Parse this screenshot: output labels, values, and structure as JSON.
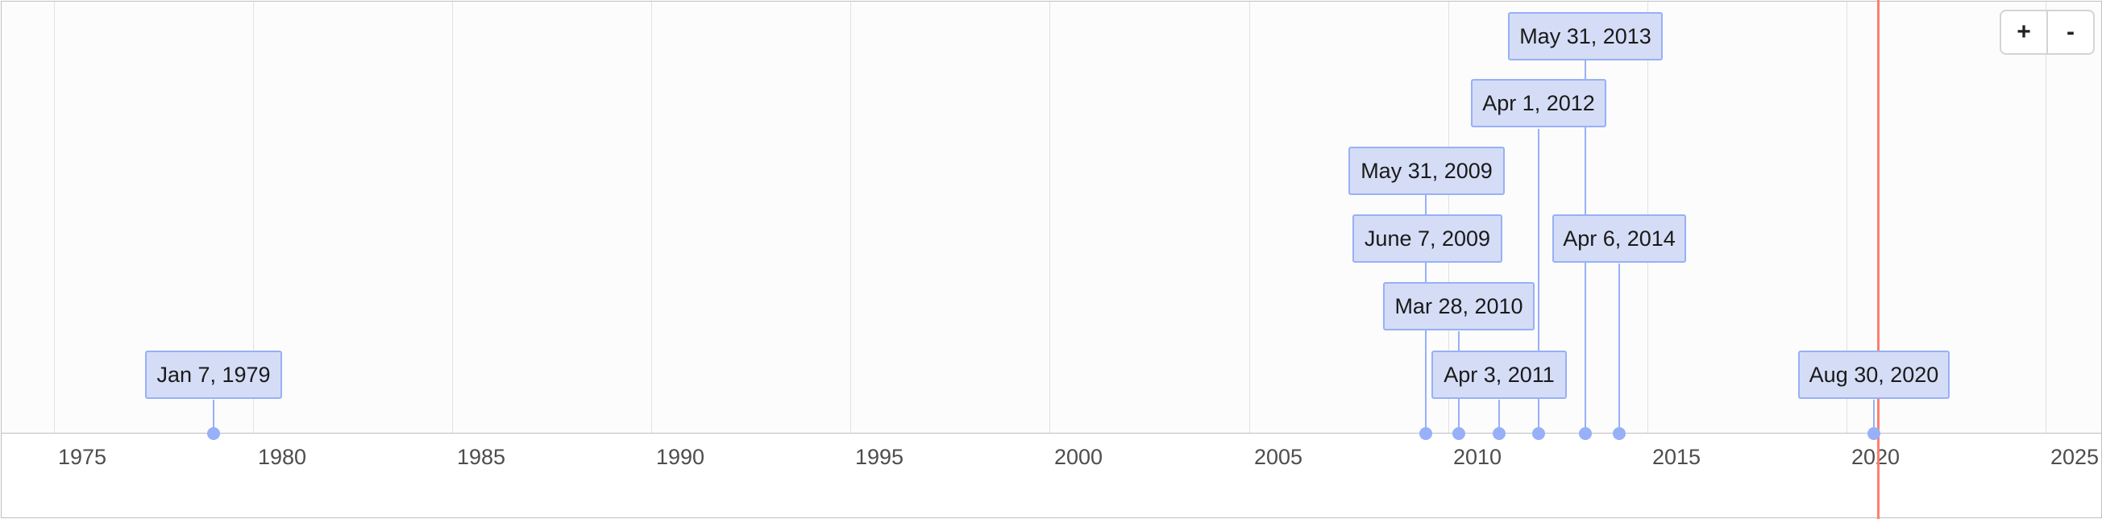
{
  "axis": {
    "ticks": [
      "1975",
      "1980",
      "1985",
      "1990",
      "1995",
      "2000",
      "2005",
      "2010",
      "2015",
      "2020",
      "2025"
    ]
  },
  "items": [
    {
      "label": "Jan 7, 1979"
    },
    {
      "label": "May 31, 2009"
    },
    {
      "label": "June 7, 2009"
    },
    {
      "label": "Mar 28, 2010"
    },
    {
      "label": "Apr 3, 2011"
    },
    {
      "label": "Apr 1, 2012"
    },
    {
      "label": "May 31, 2013"
    },
    {
      "label": "Apr 6, 2014"
    },
    {
      "label": "Aug 30, 2020"
    }
  ],
  "zoom": {
    "in_label": "+",
    "out_label": "-"
  },
  "colors": {
    "item_background": "#d5ddf6",
    "item_border": "#97b0f8",
    "current_time": "#ff7f6e"
  }
}
